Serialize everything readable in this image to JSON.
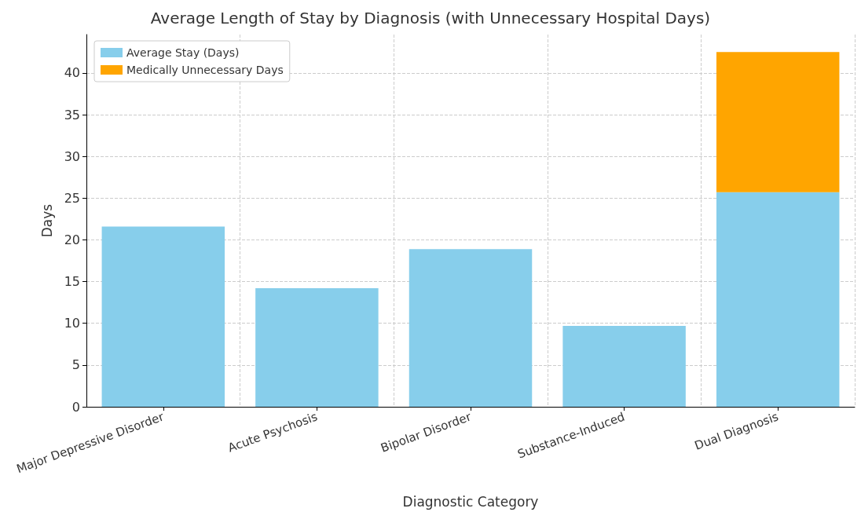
{
  "chart_data": {
    "type": "bar",
    "title": "Average Length of Stay by Diagnosis (with Unnecessary Hospital Days)",
    "xlabel": "Diagnostic Category",
    "ylabel": "Days",
    "categories": [
      "Major Depressive Disorder",
      "Acute Psychosis",
      "Bipolar Disorder",
      "Substance-Induced",
      "Dual Diagnosis"
    ],
    "series": [
      {
        "name": "Average Stay (Days)",
        "color": "#87ceeb",
        "values": [
          21.6,
          14.2,
          18.9,
          9.7,
          25.7
        ]
      },
      {
        "name": "Medically Unnecessary Days",
        "color": "#ffa500",
        "values": [
          null,
          null,
          null,
          null,
          16.8
        ]
      }
    ],
    "stacked": true,
    "ylim": [
      0,
      44.6
    ],
    "yticks": [
      0,
      5,
      10,
      15,
      20,
      25,
      30,
      35,
      40
    ],
    "grid": true,
    "legend": "top left"
  }
}
